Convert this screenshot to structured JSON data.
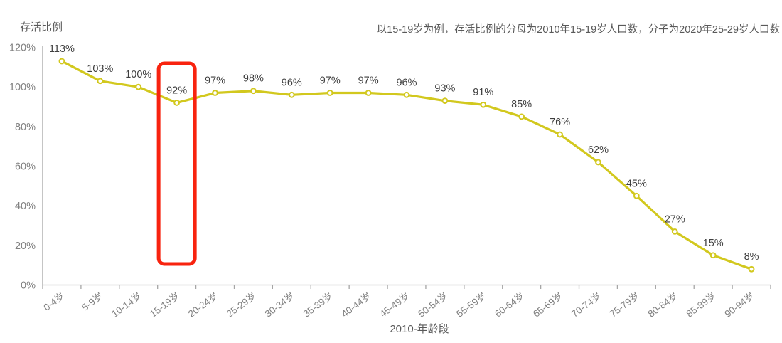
{
  "titles": {
    "y_axis": "存活比例",
    "x_axis": "2010-年龄段",
    "note": "以15-19岁为例，存活比例的分母为2010年15-19岁人口数，分子为2020年25-29岁人口数"
  },
  "colors": {
    "background": "#ffffff",
    "line": "#d2c81e",
    "marker_fill": "#ffffff",
    "data_label": "#3f3f3f",
    "axis_line": "#a6a6a6",
    "tick_label": "#808080",
    "axis_title": "#595959",
    "note_text": "#595959",
    "highlight_box": "#f8230f"
  },
  "chart_data": {
    "type": "line",
    "title": "存活比例",
    "xlabel": "2010-年龄段",
    "ylabel": "存活比例",
    "unit": "%",
    "categories": [
      "0-4岁",
      "5-9岁",
      "10-14岁",
      "15-19岁",
      "20-24岁",
      "25-29岁",
      "30-34岁",
      "35-39岁",
      "40-44岁",
      "45-49岁",
      "50-54岁",
      "55-59岁",
      "60-64岁",
      "65-69岁",
      "70-74岁",
      "75-79岁",
      "80-84岁",
      "85-89岁",
      "90-94岁"
    ],
    "values": [
      113,
      103,
      100,
      92,
      97,
      98,
      96,
      97,
      97,
      96,
      93,
      91,
      85,
      76,
      62,
      45,
      27,
      15,
      8
    ],
    "data_labels": [
      "113%",
      "103%",
      "100%",
      "92%",
      "97%",
      "98%",
      "96%",
      "97%",
      "97%",
      "96%",
      "93%",
      "91%",
      "85%",
      "76%",
      "62%",
      "45%",
      "27%",
      "15%",
      "8%"
    ],
    "ylim": [
      0,
      120
    ],
    "y_ticks": [
      0,
      20,
      40,
      60,
      80,
      100,
      120
    ],
    "y_tick_labels": [
      "0%",
      "20%",
      "40%",
      "60%",
      "80%",
      "100%",
      "120%"
    ],
    "grid": false,
    "legend": "none",
    "x_labels_rotated": true,
    "annotation": {
      "type": "highlight-rect",
      "category": "15-19岁",
      "category_index": 3,
      "highlighted_value": "92%"
    }
  }
}
